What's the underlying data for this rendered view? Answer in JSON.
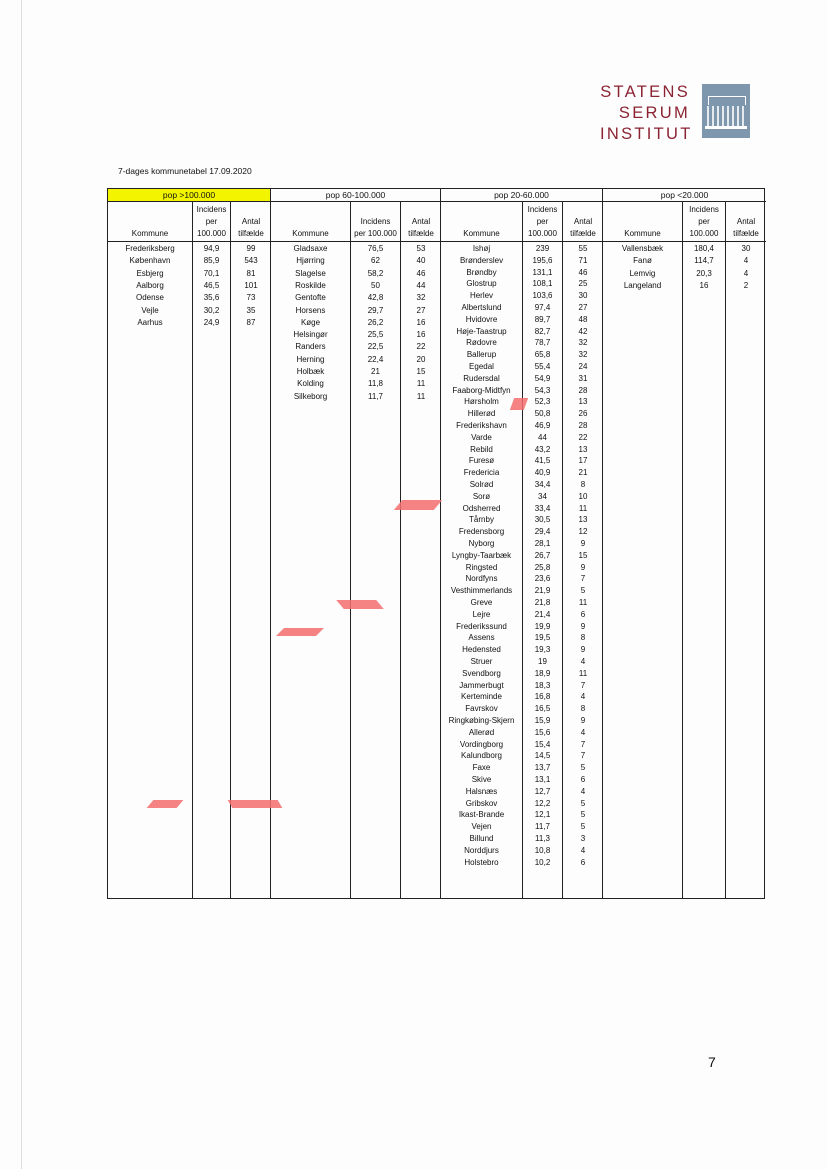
{
  "logo": {
    "lines": [
      "STATENS",
      "SERUM",
      "INSTITUT"
    ]
  },
  "title": "7-dages kommunetabel 17.09.2020",
  "column_headers": {
    "kommune": "Kommune",
    "incidens": "Incidens\nper\n100.000",
    "incidens_alt": "Incidens\nper 100.000",
    "antal": "Antal\ntilfælde"
  },
  "groups": [
    {
      "label": "pop >100.000",
      "highlight": "#f3f500",
      "rows": [
        [
          "Frederiksberg",
          "94,9",
          "99"
        ],
        [
          "København",
          "85,9",
          "543"
        ],
        [
          "Esbjerg",
          "70,1",
          "81"
        ],
        [
          "Aalborg",
          "46,5",
          "101"
        ],
        [
          "Odense",
          "35,6",
          "73"
        ],
        [
          "Vejle",
          "30,2",
          "35"
        ],
        [
          "Aarhus",
          "24,9",
          "87"
        ]
      ]
    },
    {
      "label": "pop 60-100.000",
      "rows": [
        [
          "Gladsaxe",
          "76,5",
          "53"
        ],
        [
          "Hjørring",
          "62",
          "40"
        ],
        [
          "Slagelse",
          "58,2",
          "46"
        ],
        [
          "Roskilde",
          "50",
          "44"
        ],
        [
          "Gentofte",
          "42,8",
          "32"
        ],
        [
          "Horsens",
          "29,7",
          "27"
        ],
        [
          "Køge",
          "26,2",
          "16"
        ],
        [
          "Helsingør",
          "25,5",
          "16"
        ],
        [
          "Randers",
          "22,5",
          "22"
        ],
        [
          "Herning",
          "22,4",
          "20"
        ],
        [
          "Holbæk",
          "21",
          "15"
        ],
        [
          "Kolding",
          "11,8",
          "11"
        ],
        [
          "Silkeborg",
          "11,7",
          "11"
        ]
      ]
    },
    {
      "label": "pop 20-60.000",
      "rows": [
        [
          "Ishøj",
          "239",
          "55"
        ],
        [
          "Brønderslev",
          "195,6",
          "71"
        ],
        [
          "Brøndby",
          "131,1",
          "46"
        ],
        [
          "Glostrup",
          "108,1",
          "25"
        ],
        [
          "Herlev",
          "103,6",
          "30"
        ],
        [
          "Albertslund",
          "97,4",
          "27"
        ],
        [
          "Hvidovre",
          "89,7",
          "48"
        ],
        [
          "Høje-Taastrup",
          "82,7",
          "42"
        ],
        [
          "Rødovre",
          "78,7",
          "32"
        ],
        [
          "Ballerup",
          "65,8",
          "32"
        ],
        [
          "Egedal",
          "55,4",
          "24"
        ],
        [
          "Rudersdal",
          "54,9",
          "31"
        ],
        [
          "Faaborg-Midtfyn",
          "54,3",
          "28"
        ],
        [
          "Hørsholm",
          "52,3",
          "13"
        ],
        [
          "Hillerød",
          "50,8",
          "26"
        ],
        [
          "Frederikshavn",
          "46,9",
          "28"
        ],
        [
          "Varde",
          "44",
          "22"
        ],
        [
          "Rebild",
          "43,2",
          "13"
        ],
        [
          "Furesø",
          "41,5",
          "17"
        ],
        [
          "Fredericia",
          "40,9",
          "21"
        ],
        [
          "Solrød",
          "34,4",
          "8"
        ],
        [
          "Sorø",
          "34",
          "10"
        ],
        [
          "Odsherred",
          "33,4",
          "11"
        ],
        [
          "Tårnby",
          "30,5",
          "13"
        ],
        [
          "Fredensborg",
          "29,4",
          "12"
        ],
        [
          "Nyborg",
          "28,1",
          "9"
        ],
        [
          "Lyngby-Taarbæk",
          "26,7",
          "15"
        ],
        [
          "Ringsted",
          "25,8",
          "9"
        ],
        [
          "Nordfyns",
          "23,6",
          "7"
        ],
        [
          "Vesthimmerlands",
          "21,9",
          "5"
        ],
        [
          "Greve",
          "21,8",
          "11"
        ],
        [
          "Lejre",
          "21,4",
          "6"
        ],
        [
          "Frederikssund",
          "19,9",
          "9"
        ],
        [
          "Assens",
          "19,5",
          "8"
        ],
        [
          "Hedensted",
          "19,3",
          "9"
        ],
        [
          "Struer",
          "19",
          "4"
        ],
        [
          "Svendborg",
          "18,9",
          "11"
        ],
        [
          "Jammerbugt",
          "18,3",
          "7"
        ],
        [
          "Kerteminde",
          "16,8",
          "4"
        ],
        [
          "Favrskov",
          "16,5",
          "8"
        ],
        [
          "Ringkøbing-Skjern",
          "15,9",
          "9"
        ],
        [
          "Allerød",
          "15,6",
          "4"
        ],
        [
          "Vordingborg",
          "15,4",
          "7"
        ],
        [
          "Kalundborg",
          "14,5",
          "7"
        ],
        [
          "Faxe",
          "13,7",
          "5"
        ],
        [
          "Skive",
          "13,1",
          "6"
        ],
        [
          "Halsnæs",
          "12,7",
          "4"
        ],
        [
          "Gribskov",
          "12,2",
          "5"
        ],
        [
          "Ikast-Brande",
          "12,1",
          "5"
        ],
        [
          "Vejen",
          "11,7",
          "5"
        ],
        [
          "Billund",
          "11,3",
          "3"
        ],
        [
          "Norddjurs",
          "10,8",
          "4"
        ],
        [
          "Holstebro",
          "10,2",
          "6"
        ]
      ]
    },
    {
      "label": "pop <20.000",
      "rows": [
        [
          "Vallensbæk",
          "180,4",
          "30"
        ],
        [
          "Fanø",
          "114,7",
          "4"
        ],
        [
          "Lemvig",
          "20,3",
          "4"
        ],
        [
          "Langeland",
          "16",
          "2"
        ]
      ]
    }
  ],
  "page_number": "7",
  "colors": {
    "logo": "#8b2332",
    "highlight": "#f3f500",
    "scan_artifact": "#f56d6d"
  }
}
